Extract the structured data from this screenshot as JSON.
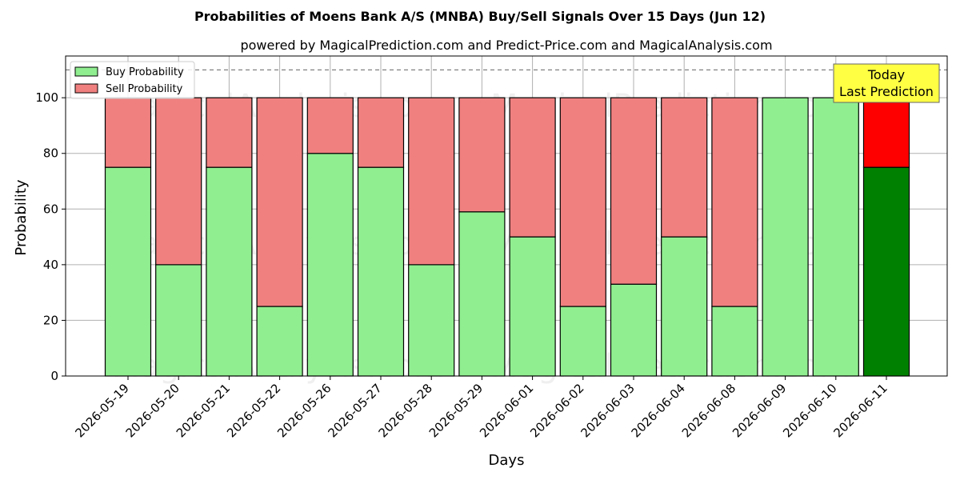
{
  "chart_data": {
    "type": "bar",
    "stacked": true,
    "title": "Probabilities of Moens Bank A/S (MNBA) Buy/Sell Signals Over 15 Days (Jun 12)",
    "subtitle": "powered by MagicalPrediction.com and Predict-Price.com and MagicalAnalysis.com",
    "xlabel": "Days",
    "ylabel": "Probability",
    "ylim": [
      0,
      115
    ],
    "yticks": [
      0,
      20,
      40,
      60,
      80,
      100
    ],
    "grid": true,
    "legend_position": "top-left",
    "reference_line": 110,
    "categories": [
      "2026-05-19",
      "2026-05-20",
      "2026-05-21",
      "2026-05-22",
      "2026-05-26",
      "2026-05-27",
      "2026-05-28",
      "2026-05-29",
      "2026-06-01",
      "2026-06-02",
      "2026-06-03",
      "2026-06-04",
      "2026-06-08",
      "2026-06-09",
      "2026-06-10",
      "2026-06-11"
    ],
    "series": [
      {
        "name": "Buy Probability",
        "color": "#90ee90",
        "highlight_color": "#008000",
        "values": [
          75,
          40,
          75,
          25,
          80,
          75,
          40,
          59,
          50,
          25,
          33,
          50,
          25,
          100,
          100,
          75
        ]
      },
      {
        "name": "Sell Probability",
        "color": "#f08080",
        "highlight_color": "#ff0000",
        "values": [
          25,
          60,
          25,
          75,
          20,
          25,
          60,
          41,
          50,
          75,
          67,
          50,
          75,
          0,
          0,
          25
        ]
      }
    ],
    "highlight_index": 15,
    "annotation": {
      "lines": [
        "Today",
        "Last Prediction"
      ],
      "bg_color": "#ffff44"
    },
    "watermarks": [
      "MagicalAnalysis.com",
      "MagicalPrediction.com"
    ]
  }
}
